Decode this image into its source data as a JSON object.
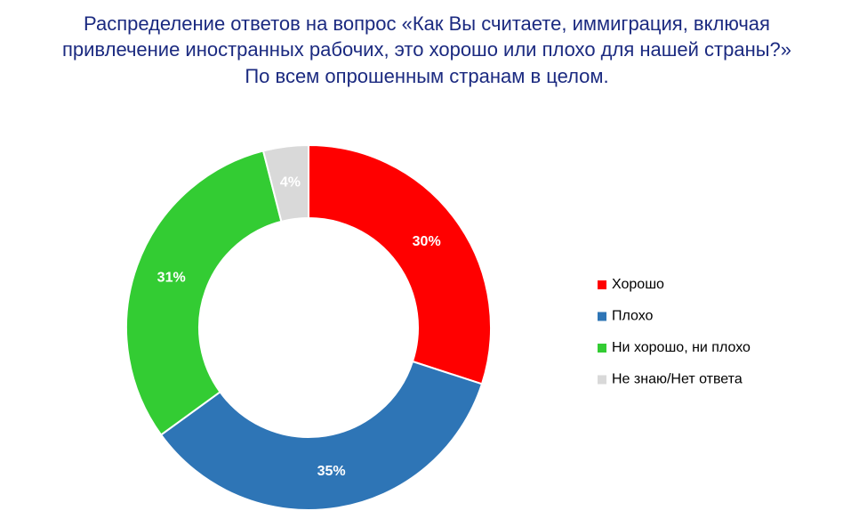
{
  "chart_data": {
    "type": "donut",
    "title": [
      "Распределение ответов на вопрос «Как Вы считаете, иммиграция, включая",
      "привлечение иностранных рабочих, это хорошо или плохо для нашей страны?»"
    ],
    "subtitle": "По всем опрошенным странам в целом.",
    "categories": [
      "Хорошо",
      "Плохо",
      "Ни хорошо, ни плохо",
      "Не знаю/Нет ответа"
    ],
    "values": [
      30,
      35,
      31,
      4
    ],
    "value_labels": [
      "30%",
      "35%",
      "31%",
      "4%"
    ],
    "colors": [
      "#ff0000",
      "#2e75b6",
      "#33cc33",
      "#d9d9d9"
    ],
    "legend": "right"
  }
}
